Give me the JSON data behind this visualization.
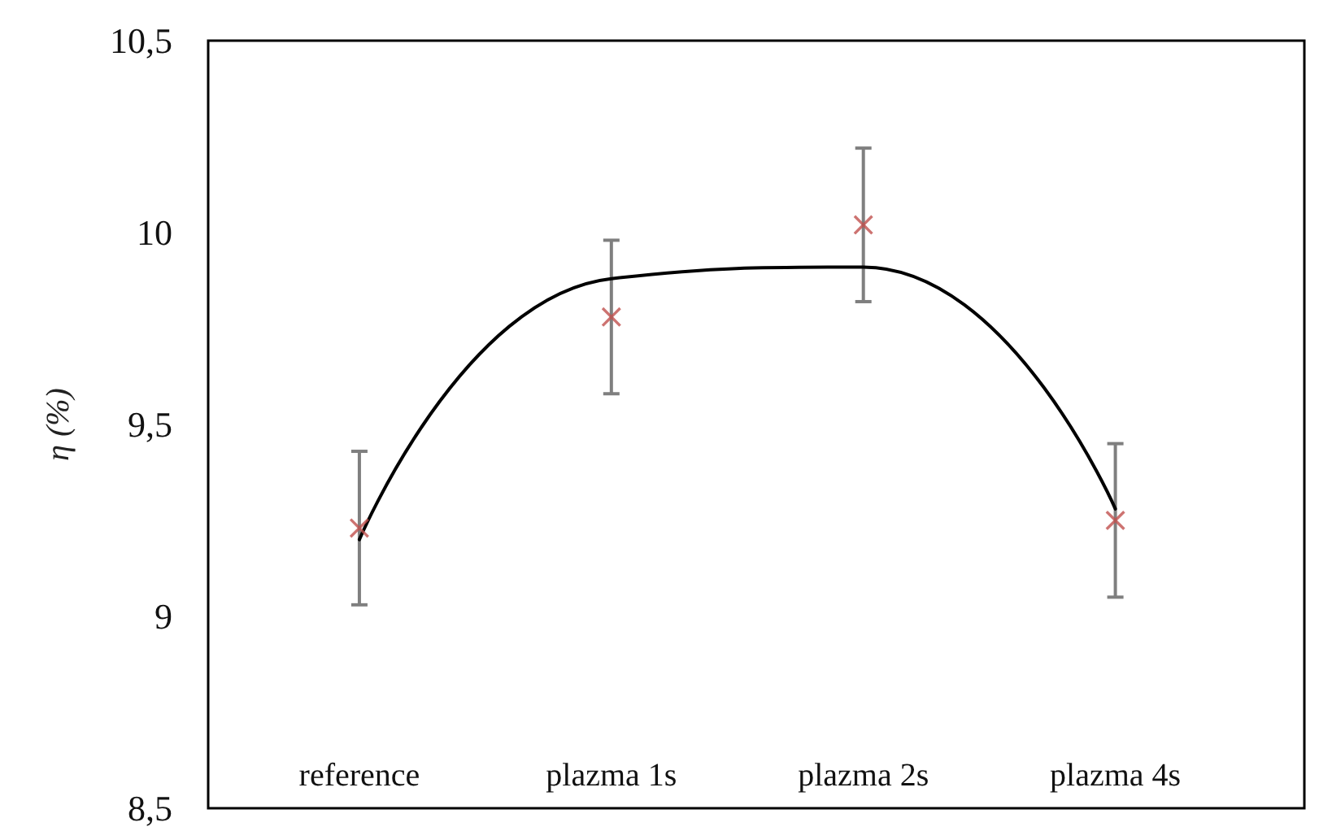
{
  "chart_data": {
    "type": "scatter",
    "ylabel": "η (%)",
    "categories": [
      "reference",
      "plazma 1s",
      "plazma 2s",
      "plazma 4s"
    ],
    "series": [
      {
        "color": "#c0504d",
        "values": [
          9.23,
          9.78,
          10.02,
          9.25
        ],
        "errors": [
          0.2,
          0.2,
          0.2,
          0.2
        ],
        "marker": "cross"
      },
      {
        "type": "line",
        "color": "#000000",
        "values": [
          9.2,
          9.88,
          9.91,
          9.28
        ],
        "marker": "none",
        "line_style": "solid"
      }
    ],
    "ylim": [
      8.5,
      10.5
    ],
    "yticks": [
      {
        "value": 8.5,
        "label": "8,5"
      },
      9,
      {
        "value": 9.5,
        "label": "9,5"
      },
      10,
      {
        "value": 10.5,
        "label": "10,5"
      }
    ],
    "grid": false
  }
}
